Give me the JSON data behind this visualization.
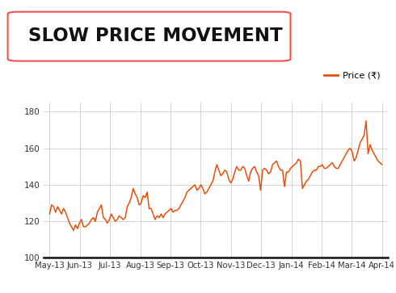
{
  "title": "SLOW PRICE MOVEMENT",
  "line_color": "#E8500A",
  "bg_color": "#ffffff",
  "grid_color": "#cccccc",
  "ylim": [
    100,
    185
  ],
  "yticks": [
    100,
    120,
    140,
    160,
    180
  ],
  "legend_label": "Price (₹)",
  "x_labels": [
    "May-13",
    "Jun-13",
    "Jul-13",
    "Aug-13",
    "Sep-13",
    "Oct-13",
    "Nov-13",
    "Dec-13",
    "Jan-14",
    "Feb-14",
    "Mar-14",
    "Apr-14"
  ],
  "prices": [
    124,
    129,
    128,
    125,
    128,
    126,
    124,
    127,
    125,
    122,
    119,
    117,
    115,
    118,
    116,
    119,
    121,
    117,
    117,
    118,
    119,
    121,
    122,
    120,
    125,
    127,
    129,
    122,
    121,
    119,
    121,
    124,
    122,
    120,
    121,
    123,
    122,
    121,
    122,
    128,
    130,
    133,
    138,
    135,
    133,
    129,
    130,
    134,
    133,
    136,
    127,
    127,
    124,
    121,
    123,
    122,
    124,
    122,
    124,
    125,
    126,
    127,
    125,
    126,
    126,
    127,
    129,
    131,
    133,
    136,
    137,
    138,
    139,
    140,
    137,
    138,
    140,
    138,
    135,
    136,
    138,
    140,
    142,
    147,
    151,
    148,
    145,
    146,
    148,
    147,
    143,
    141,
    143,
    147,
    150,
    148,
    148,
    150,
    149,
    145,
    142,
    147,
    149,
    150,
    147,
    145,
    137,
    148,
    149,
    148,
    146,
    147,
    151,
    152,
    153,
    150,
    148,
    148,
    139,
    147,
    147,
    149,
    150,
    151,
    152,
    154,
    153,
    138,
    140,
    142,
    143,
    145,
    147,
    148,
    148,
    150,
    150,
    151,
    149,
    149,
    150,
    151,
    152,
    150,
    149,
    149,
    151,
    153,
    155,
    157,
    159,
    160,
    158,
    153,
    155,
    159,
    163,
    165,
    167,
    175,
    157,
    162,
    159,
    157,
    155,
    153,
    152,
    151
  ]
}
